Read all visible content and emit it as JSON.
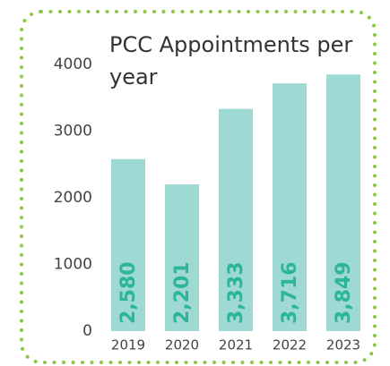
{
  "chart_data": {
    "type": "bar",
    "title": "PCC Appointments per year",
    "categories": [
      "2019",
      "2020",
      "2021",
      "2022",
      "2023"
    ],
    "values": [
      2580,
      2201,
      3333,
      3716,
      3849
    ],
    "value_labels": [
      "2,580",
      "2,201",
      "3,333",
      "3,716",
      "3,849"
    ],
    "color": "#9fd9d3",
    "label_color": "#2bb59a",
    "ylim": [
      0,
      4000
    ],
    "yticks": [
      0,
      1000,
      2000,
      3000,
      4000
    ],
    "grid": false
  }
}
